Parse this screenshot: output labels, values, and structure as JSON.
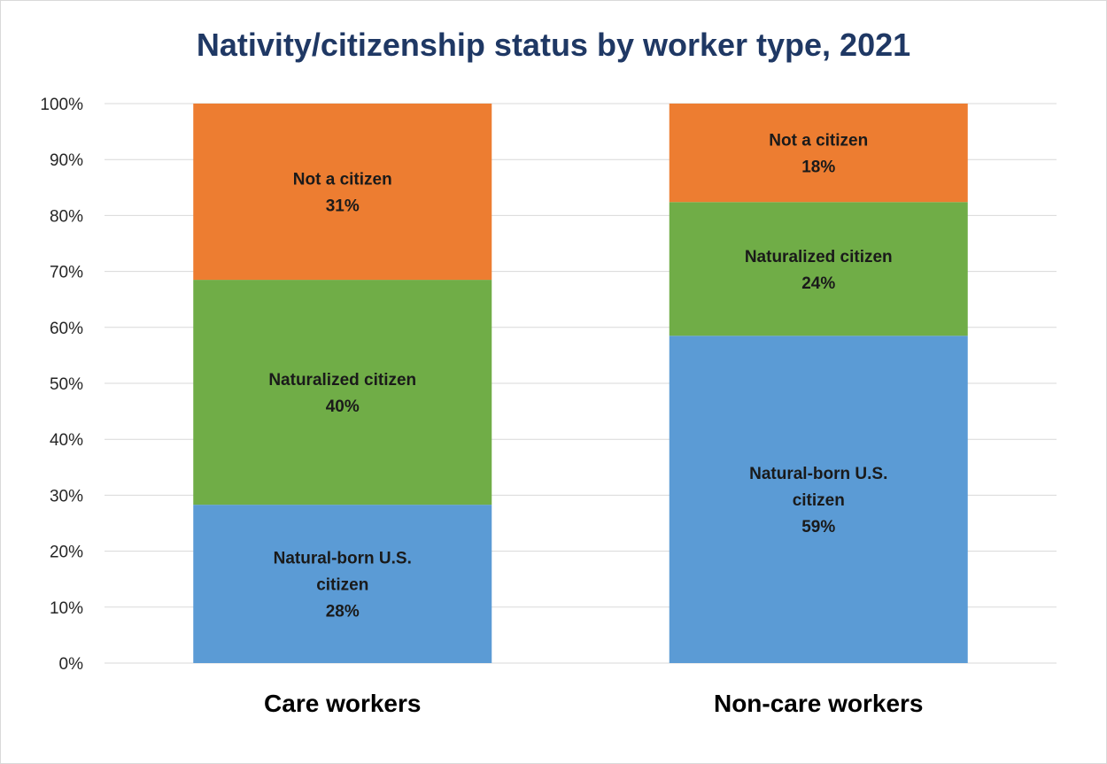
{
  "colors": {
    "title": "#1f3864",
    "grid": "#d9d9d9",
    "axis_text": "#262626",
    "label_text": "#1a1a1a"
  },
  "chart_data": {
    "type": "bar",
    "stacked": true,
    "title": "Nativity/citizenship status by worker type, 2021",
    "xlabel": "",
    "ylabel": "",
    "categories": [
      "Care workers",
      "Non-care workers"
    ],
    "y_ticks": [
      "0%",
      "10%",
      "20%",
      "30%",
      "40%",
      "50%",
      "60%",
      "70%",
      "80%",
      "90%",
      "100%"
    ],
    "ylim": [
      0,
      100
    ],
    "grid": true,
    "legend": "none",
    "series": [
      {
        "name": "Natural-born U.S. citizen",
        "color": "#5b9bd5",
        "values": [
          28.3,
          58.5
        ],
        "label_lines": [
          [
            "Natural-born U.S.",
            "citizen",
            "28%"
          ],
          [
            "Natural-born U.S.",
            "citizen",
            "59%"
          ]
        ]
      },
      {
        "name": "Naturalized citizen",
        "color": "#70ad47",
        "values": [
          40.2,
          23.9
        ],
        "label_lines": [
          [
            "Naturalized citizen",
            "40%"
          ],
          [
            "Naturalized citizen",
            "24%"
          ]
        ]
      },
      {
        "name": "Not a citizen",
        "color": "#ed7d31",
        "values": [
          31.5,
          17.6
        ],
        "label_lines": [
          [
            "Not a citizen",
            "31%"
          ],
          [
            "Not a citizen",
            "18%"
          ]
        ]
      }
    ]
  }
}
